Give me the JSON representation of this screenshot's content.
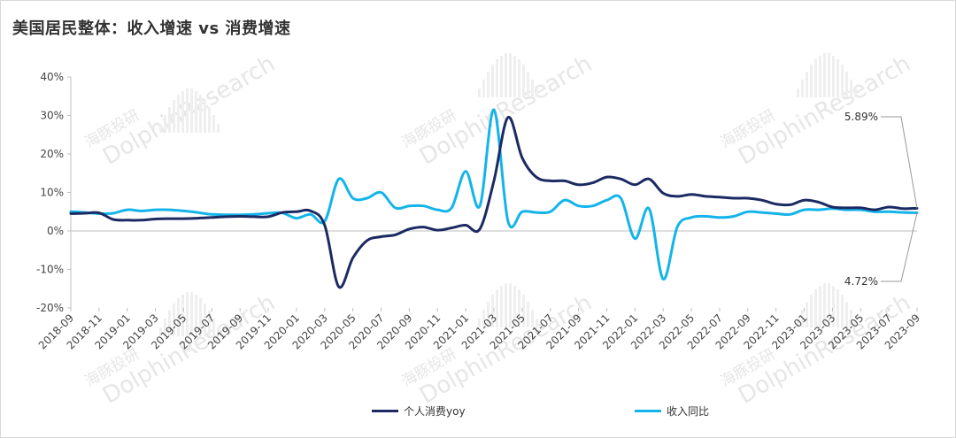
{
  "title": "美国居民整体：收入增速 vs 消费增速",
  "watermark": {
    "cn": "海豚投研",
    "en": "DolphinResearch"
  },
  "colors": {
    "consumption": "#1c2a63",
    "income": "#14b4ea",
    "axis": "#bfbfbf",
    "callout_line": "#999999"
  },
  "chart_data": {
    "type": "line",
    "title": "美国居民整体：收入增速 vs 消费增速",
    "xlabel": "",
    "ylabel": "",
    "ylim": [
      -20,
      40
    ],
    "yticks": [
      "40%",
      "30%",
      "20%",
      "10%",
      "0%",
      "-10%",
      "-20%"
    ],
    "ytick_values": [
      40,
      30,
      20,
      10,
      0,
      -10,
      -20
    ],
    "x_tick_labels": [
      "2018-09",
      "2018-11",
      "2019-01",
      "2019-03",
      "2019-05",
      "2019-07",
      "2019-09",
      "2019-11",
      "2020-01",
      "2020-03",
      "2020-05",
      "2020-07",
      "2020-09",
      "2020-11",
      "2021-01",
      "2021-03",
      "2021-05",
      "2021-07",
      "2021-09",
      "2021-11",
      "2022-01",
      "2022-03",
      "2022-05",
      "2022-07",
      "2022-09",
      "2022-11",
      "2023-01",
      "2023-03",
      "2023-05",
      "2023-07",
      "2023-09"
    ],
    "x": [
      "2018-09",
      "2018-10",
      "2018-11",
      "2018-12",
      "2019-01",
      "2019-02",
      "2019-03",
      "2019-04",
      "2019-05",
      "2019-06",
      "2019-07",
      "2019-08",
      "2019-09",
      "2019-10",
      "2019-11",
      "2019-12",
      "2020-01",
      "2020-02",
      "2020-03",
      "2020-04",
      "2020-05",
      "2020-06",
      "2020-07",
      "2020-08",
      "2020-09",
      "2020-10",
      "2020-11",
      "2020-12",
      "2021-01",
      "2021-02",
      "2021-03",
      "2021-04",
      "2021-05",
      "2021-06",
      "2021-07",
      "2021-08",
      "2021-09",
      "2021-10",
      "2021-11",
      "2021-12",
      "2022-01",
      "2022-02",
      "2022-03",
      "2022-04",
      "2022-05",
      "2022-06",
      "2022-07",
      "2022-08",
      "2022-09",
      "2022-10",
      "2022-11",
      "2022-12",
      "2023-01",
      "2023-02",
      "2023-03",
      "2023-04",
      "2023-05",
      "2023-06",
      "2023-07",
      "2023-08",
      "2023-09"
    ],
    "series": [
      {
        "name": "个人消费yoy",
        "color": "#1c2a63",
        "values": [
          4.5,
          4.6,
          4.7,
          3.0,
          2.8,
          2.8,
          3.1,
          3.2,
          3.2,
          3.3,
          3.5,
          3.7,
          3.8,
          3.7,
          3.7,
          4.8,
          5.0,
          5.2,
          1.5,
          -14.5,
          -7.0,
          -2.5,
          -1.5,
          -1.0,
          0.5,
          1.0,
          0.2,
          0.8,
          1.5,
          0.5,
          13.0,
          29.5,
          19.0,
          14.0,
          13.0,
          13.0,
          12.0,
          12.5,
          14.0,
          13.5,
          12.0,
          13.5,
          9.8,
          9.0,
          9.5,
          9.0,
          8.8,
          8.5,
          8.5,
          8.0,
          7.0,
          6.8,
          8.0,
          7.5,
          6.2,
          6.0,
          6.0,
          5.5,
          6.2,
          5.8,
          5.89
        ]
      },
      {
        "name": "收入同比",
        "color": "#14b4ea",
        "values": [
          5.0,
          4.8,
          4.5,
          4.6,
          5.5,
          5.2,
          5.5,
          5.5,
          5.2,
          4.8,
          4.3,
          4.2,
          4.2,
          4.3,
          4.6,
          4.7,
          3.3,
          4.3,
          2.5,
          13.5,
          8.5,
          8.5,
          10.0,
          6.0,
          6.5,
          6.5,
          5.5,
          6.0,
          15.5,
          6.5,
          31.5,
          2.5,
          5.0,
          4.8,
          5.0,
          8.0,
          6.5,
          6.5,
          8.0,
          8.5,
          -2.0,
          5.8,
          -12.5,
          1.0,
          3.5,
          3.8,
          3.5,
          3.8,
          5.0,
          4.8,
          4.5,
          4.3,
          5.5,
          5.5,
          5.8,
          5.5,
          5.5,
          5.0,
          5.0,
          4.8,
          4.72
        ]
      }
    ],
    "annotations": [
      {
        "series": "个人消费yoy",
        "x": "2023-09",
        "label": "5.89%"
      },
      {
        "series": "收入同比",
        "x": "2023-09",
        "label": "4.72%"
      }
    ],
    "grid": false,
    "legend_position": "bottom"
  },
  "legend": {
    "consumption": "个人消费yoy",
    "income": "收入同比"
  }
}
